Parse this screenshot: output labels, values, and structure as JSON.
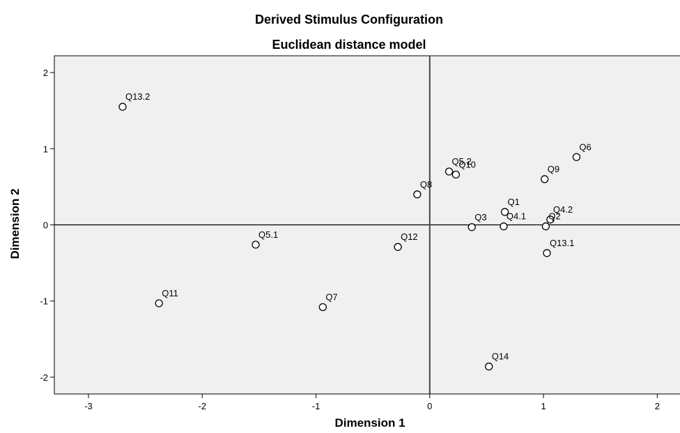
{
  "chart_data": {
    "type": "scatter",
    "title": "Derived Stimulus Configuration",
    "subtitle": "Euclidean distance model",
    "xlabel": "Dimension 1",
    "ylabel": "Dimension 2",
    "xlim": [
      -3.3,
      2.2
    ],
    "ylim": [
      -2.22,
      2.22
    ],
    "xticks": [
      -3,
      -2,
      -1,
      0,
      1,
      2
    ],
    "yticks": [
      -2,
      -1,
      0,
      1,
      2
    ],
    "reference_lines": {
      "x": 0,
      "y": 0
    },
    "grid": false,
    "plot_background": "#f0f0f0",
    "points": [
      {
        "label": "Q13.2",
        "x": -2.7,
        "y": 1.55
      },
      {
        "label": "Q11",
        "x": -2.38,
        "y": -1.03
      },
      {
        "label": "Q5.1",
        "x": -1.53,
        "y": -0.26
      },
      {
        "label": "Q7",
        "x": -0.94,
        "y": -1.08
      },
      {
        "label": "Q12",
        "x": -0.28,
        "y": -0.29
      },
      {
        "label": "Q8",
        "x": -0.11,
        "y": 0.4
      },
      {
        "label": "Q5.2",
        "x": 0.17,
        "y": 0.7
      },
      {
        "label": "Q10",
        "x": 0.23,
        "y": 0.66
      },
      {
        "label": "Q3",
        "x": 0.37,
        "y": -0.03
      },
      {
        "label": "Q4.1",
        "x": 0.65,
        "y": -0.02
      },
      {
        "label": "Q1",
        "x": 0.66,
        "y": 0.17
      },
      {
        "label": "Q2",
        "x": 1.02,
        "y": -0.02
      },
      {
        "label": "Q9",
        "x": 1.01,
        "y": 0.6
      },
      {
        "label": "Q13.1",
        "x": 1.03,
        "y": -0.37
      },
      {
        "label": "Q4.2",
        "x": 1.06,
        "y": 0.07
      },
      {
        "label": "Q6",
        "x": 1.29,
        "y": 0.89
      },
      {
        "label": "Q14",
        "x": 0.52,
        "y": -1.86
      }
    ]
  }
}
